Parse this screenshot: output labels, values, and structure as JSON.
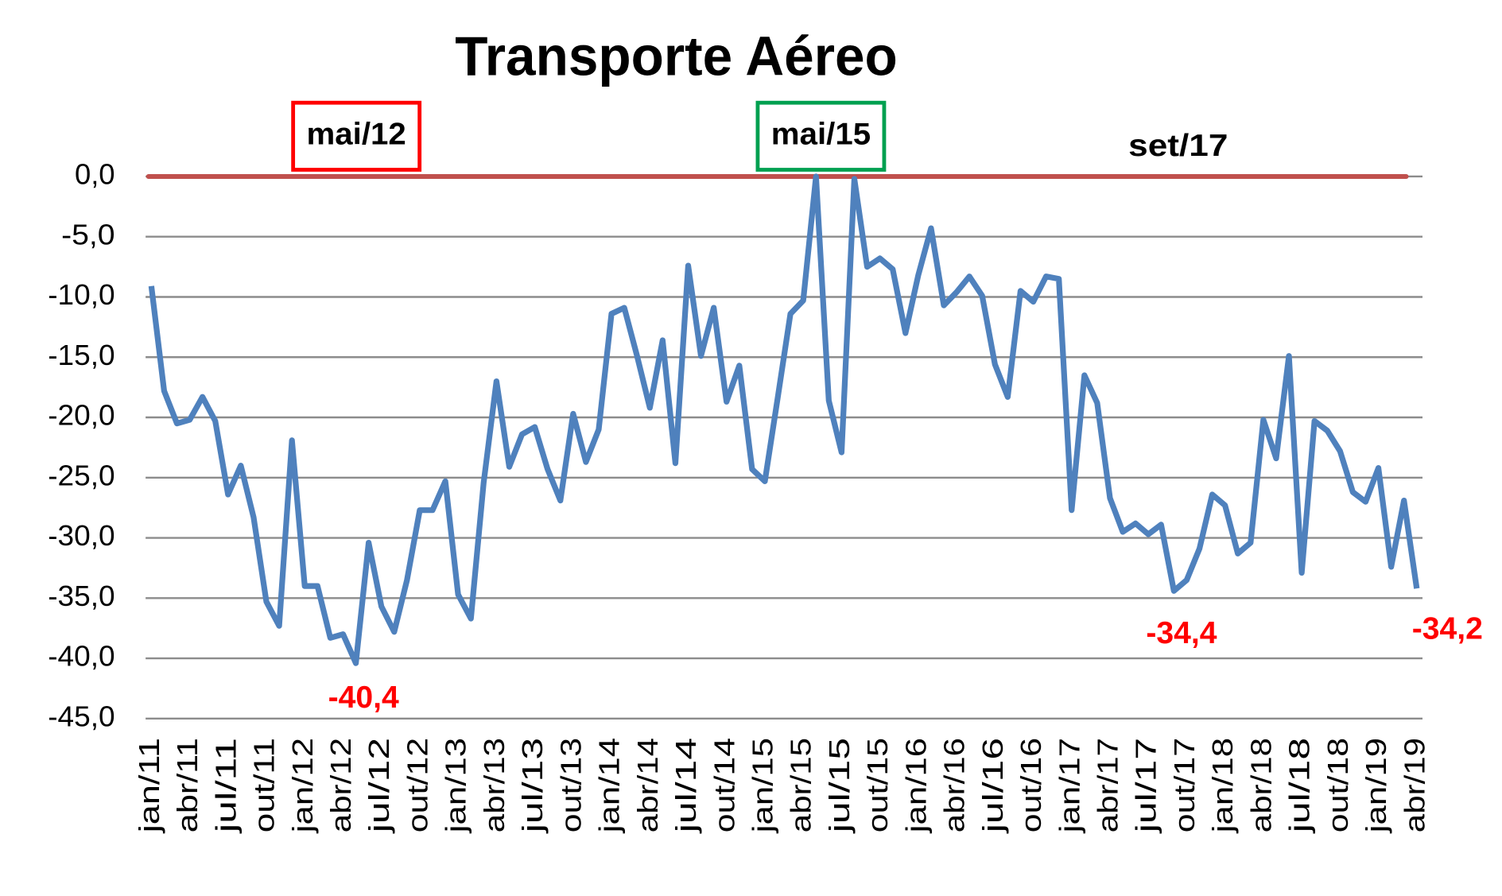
{
  "chart_data": {
    "type": "line",
    "title": "Transporte Aéreo",
    "categories": [
      "jan/11",
      null,
      null,
      "abr/11",
      null,
      null,
      "jul/11",
      null,
      null,
      "out/11",
      null,
      null,
      "jan/12",
      null,
      null,
      "abr/12",
      null,
      null,
      "jul/12",
      null,
      null,
      "out/12",
      null,
      null,
      "jan/13",
      null,
      null,
      "abr/13",
      null,
      null,
      "jul/13",
      null,
      null,
      "out/13",
      null,
      null,
      "jan/14",
      null,
      null,
      "abr/14",
      null,
      null,
      "jul/14",
      null,
      null,
      "out/14",
      null,
      null,
      "jan/15",
      null,
      null,
      "abr/15",
      null,
      null,
      "jul/15",
      null,
      null,
      "out/15",
      null,
      null,
      "jan/16",
      null,
      null,
      "abr/16",
      null,
      null,
      "jul/16",
      null,
      null,
      "out/16",
      null,
      null,
      "jan/17",
      null,
      null,
      "abr/17",
      null,
      null,
      "jul/17",
      null,
      null,
      "out/17",
      null,
      null,
      "jan/18",
      null,
      null,
      "abr/18",
      null,
      null,
      "jul/18",
      null,
      null,
      "out/18",
      null,
      null,
      "jan/19",
      null,
      null,
      "abr/19"
    ],
    "series": [
      {
        "name": "Transporte Aéreo",
        "color": "#4f81bd",
        "values": [
          -9.1,
          -17.8,
          -20.5,
          -20.2,
          -18.3,
          -20.3,
          -26.4,
          -24.0,
          -28.3,
          -35.3,
          -37.3,
          -21.9,
          -34.0,
          -34.0,
          -38.3,
          -38.0,
          -40.4,
          -30.4,
          -35.7,
          -37.8,
          -33.5,
          -27.7,
          -27.7,
          -25.3,
          -34.7,
          -36.7,
          -25.4,
          -17.0,
          -24.1,
          -21.4,
          -20.8,
          -24.3,
          -26.9,
          -19.7,
          -23.7,
          -21.0,
          -11.4,
          -10.9,
          -14.9,
          -19.2,
          -13.6,
          -23.8,
          -7.4,
          -14.9,
          -10.9,
          -18.7,
          -15.7,
          -24.3,
          -25.3,
          -18.4,
          -11.4,
          -10.3,
          0.0,
          -18.6,
          -22.9,
          -0.2,
          -7.5,
          -6.8,
          -7.7,
          -13.0,
          -8.2,
          -4.3,
          -10.7,
          -9.6,
          -8.3,
          -9.9,
          -15.6,
          -18.3,
          -9.5,
          -10.4,
          -8.3,
          -8.5,
          -27.7,
          -16.5,
          -18.8,
          -26.7,
          -29.5,
          -28.8,
          -29.7,
          -28.9,
          -34.4,
          -33.5,
          -30.9,
          -26.4,
          -27.3,
          -31.3,
          -30.4,
          -20.2,
          -23.4,
          -14.9,
          -32.9,
          -20.3,
          -21.1,
          -22.8,
          -26.2,
          -27.0,
          -24.2,
          -32.4,
          -26.9,
          -34.2
        ],
        "value_labels": [
          null,
          null,
          null,
          null,
          null,
          null,
          null,
          null,
          null,
          null,
          null,
          null,
          null,
          null,
          null,
          null,
          "-40,4",
          null,
          null,
          null,
          null,
          null,
          null,
          null,
          null,
          null,
          null,
          null,
          null,
          null,
          null,
          null,
          null,
          null,
          null,
          null,
          null,
          null,
          null,
          null,
          null,
          null,
          null,
          null,
          null,
          null,
          null,
          null,
          null,
          null,
          null,
          null,
          null,
          null,
          null,
          null,
          null,
          null,
          null,
          null,
          null,
          null,
          null,
          null,
          null,
          null,
          null,
          null,
          null,
          null,
          null,
          null,
          null,
          null,
          null,
          null,
          null,
          null,
          null,
          null,
          "-34,4",
          null,
          null,
          null,
          null,
          null,
          null,
          null,
          null,
          null,
          null,
          null,
          null,
          null,
          null,
          null,
          null,
          null,
          null,
          "-34,2"
        ],
        "value_label_color": "#ff0000"
      }
    ],
    "ylim": [
      -45,
      0
    ],
    "yticks": [
      {
        "value": 0,
        "label": "0,0"
      },
      {
        "value": -5,
        "label": "-5,0"
      },
      {
        "value": -10,
        "label": "-10,0"
      },
      {
        "value": -15,
        "label": "-15,0"
      },
      {
        "value": -20,
        "label": "-20,0"
      },
      {
        "value": -25,
        "label": "-25,0"
      },
      {
        "value": -30,
        "label": "-30,0"
      },
      {
        "value": -35,
        "label": "-35,0"
      },
      {
        "value": -40,
        "label": "-40,0"
      },
      {
        "value": -45,
        "label": "-45,0"
      }
    ],
    "grid": true,
    "reference_line": {
      "value": 0,
      "color": "#c0504d"
    },
    "annotations": [
      {
        "text": "mai/12",
        "box_color": "#ff0000"
      },
      {
        "text": "mai/15",
        "box_color": "#00a050"
      },
      {
        "text": "set/17"
      }
    ]
  }
}
